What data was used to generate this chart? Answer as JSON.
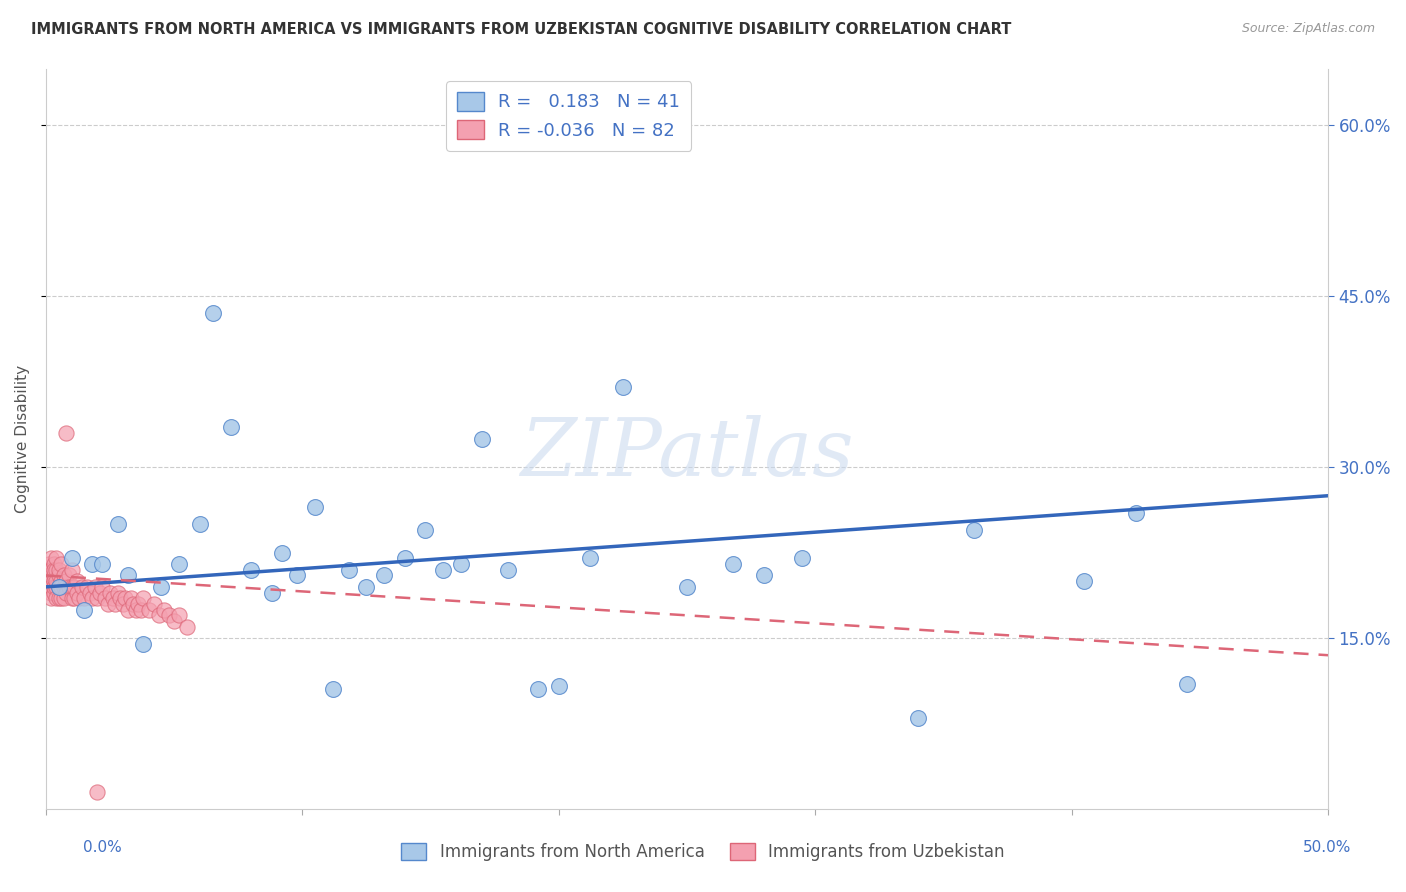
{
  "title": "IMMIGRANTS FROM NORTH AMERICA VS IMMIGRANTS FROM UZBEKISTAN COGNITIVE DISABILITY CORRELATION CHART",
  "source": "Source: ZipAtlas.com",
  "ylabel": "Cognitive Disability",
  "xlim": [
    0,
    0.5
  ],
  "ylim": [
    0,
    0.65
  ],
  "xtick_left_label": "0.0%",
  "xtick_right_label": "50.0%",
  "right_yticklabels": [
    "15.0%",
    "30.0%",
    "45.0%",
    "60.0%"
  ],
  "right_ytick_values": [
    0.15,
    0.3,
    0.45,
    0.6
  ],
  "blue_color": "#a8c8e8",
  "blue_edge": "#5588cc",
  "pink_color": "#f4a0b0",
  "pink_edge": "#dd6677",
  "trend_blue_color": "#3366bb",
  "trend_pink_color": "#dd6677",
  "r_blue": 0.183,
  "n_blue": 41,
  "r_pink": -0.036,
  "n_pink": 82,
  "legend_label_blue": "Immigrants from North America",
  "legend_label_pink": "Immigrants from Uzbekistan",
  "blue_trend_x": [
    0.0,
    0.5
  ],
  "blue_trend_y": [
    0.195,
    0.275
  ],
  "pink_trend_x": [
    0.0,
    0.5
  ],
  "pink_trend_y": [
    0.205,
    0.135
  ],
  "blue_x": [
    0.005,
    0.01,
    0.015,
    0.018,
    0.022,
    0.028,
    0.032,
    0.038,
    0.045,
    0.052,
    0.06,
    0.065,
    0.072,
    0.08,
    0.088,
    0.092,
    0.098,
    0.105,
    0.112,
    0.118,
    0.125,
    0.132,
    0.14,
    0.148,
    0.155,
    0.162,
    0.17,
    0.18,
    0.192,
    0.2,
    0.212,
    0.225,
    0.25,
    0.268,
    0.28,
    0.295,
    0.34,
    0.362,
    0.405,
    0.425,
    0.445
  ],
  "blue_y": [
    0.195,
    0.22,
    0.175,
    0.215,
    0.215,
    0.25,
    0.205,
    0.145,
    0.195,
    0.215,
    0.25,
    0.435,
    0.335,
    0.21,
    0.19,
    0.225,
    0.205,
    0.265,
    0.105,
    0.21,
    0.195,
    0.205,
    0.22,
    0.245,
    0.21,
    0.215,
    0.325,
    0.21,
    0.105,
    0.108,
    0.22,
    0.37,
    0.195,
    0.215,
    0.205,
    0.22,
    0.08,
    0.245,
    0.2,
    0.26,
    0.11
  ],
  "pink_x": [
    0.001,
    0.001,
    0.001,
    0.001,
    0.001,
    0.002,
    0.002,
    0.002,
    0.002,
    0.002,
    0.002,
    0.003,
    0.003,
    0.003,
    0.003,
    0.003,
    0.003,
    0.004,
    0.004,
    0.004,
    0.004,
    0.004,
    0.005,
    0.005,
    0.005,
    0.005,
    0.005,
    0.006,
    0.006,
    0.006,
    0.006,
    0.007,
    0.007,
    0.007,
    0.008,
    0.008,
    0.008,
    0.009,
    0.009,
    0.01,
    0.01,
    0.01,
    0.011,
    0.011,
    0.012,
    0.012,
    0.013,
    0.014,
    0.015,
    0.016,
    0.017,
    0.018,
    0.019,
    0.02,
    0.021,
    0.022,
    0.023,
    0.024,
    0.025,
    0.026,
    0.027,
    0.028,
    0.029,
    0.03,
    0.031,
    0.032,
    0.033,
    0.034,
    0.035,
    0.036,
    0.037,
    0.038,
    0.04,
    0.042,
    0.044,
    0.046,
    0.048,
    0.05,
    0.052,
    0.055,
    0.008,
    0.02
  ],
  "pink_y": [
    0.2,
    0.21,
    0.195,
    0.205,
    0.215,
    0.19,
    0.22,
    0.2,
    0.195,
    0.21,
    0.185,
    0.205,
    0.215,
    0.19,
    0.2,
    0.195,
    0.21,
    0.195,
    0.21,
    0.22,
    0.185,
    0.2,
    0.205,
    0.195,
    0.185,
    0.21,
    0.195,
    0.2,
    0.185,
    0.215,
    0.195,
    0.205,
    0.195,
    0.185,
    0.2,
    0.195,
    0.19,
    0.205,
    0.195,
    0.185,
    0.195,
    0.21,
    0.185,
    0.195,
    0.2,
    0.19,
    0.185,
    0.195,
    0.185,
    0.195,
    0.19,
    0.185,
    0.195,
    0.185,
    0.19,
    0.195,
    0.185,
    0.18,
    0.19,
    0.185,
    0.18,
    0.19,
    0.185,
    0.18,
    0.185,
    0.175,
    0.185,
    0.18,
    0.175,
    0.18,
    0.175,
    0.185,
    0.175,
    0.18,
    0.17,
    0.175,
    0.17,
    0.165,
    0.17,
    0.16,
    0.33,
    0.015
  ]
}
